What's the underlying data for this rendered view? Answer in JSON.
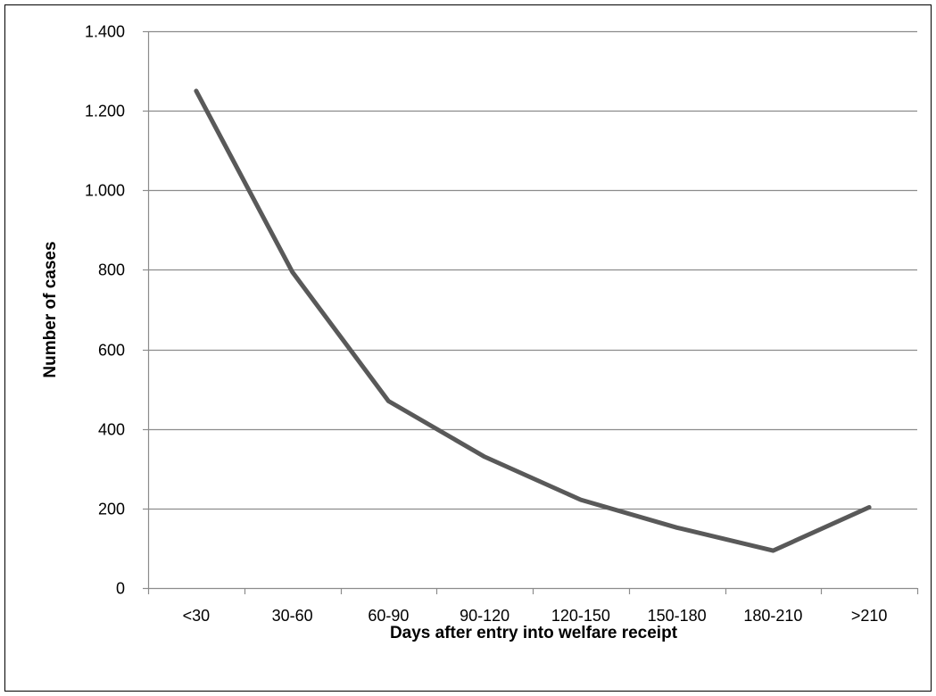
{
  "chart_data": {
    "type": "line",
    "title": "",
    "xlabel": "Days after entry into welfare receipt",
    "ylabel": "Number of cases",
    "categories": [
      "<30",
      "30-60",
      "60-90",
      "90-120",
      "120-150",
      "150-180",
      "180-210",
      ">210"
    ],
    "series": [
      {
        "values": [
          1250,
          795,
          470,
          330,
          222,
          152,
          94,
          203
        ],
        "color": "#595959"
      }
    ],
    "ylim": [
      0,
      1400
    ],
    "yticks": [
      0,
      200,
      400,
      600,
      800,
      1000,
      1200,
      1400
    ],
    "ytick_labels": [
      "0",
      "200",
      "400",
      "600",
      "800",
      "1.000",
      "1.200",
      "1.400"
    ],
    "grid": true,
    "legend": "none",
    "colors": {
      "line": "#595959",
      "grid": "#8c8c8c",
      "axis": "#8c8c8c",
      "border": "#000000"
    }
  }
}
